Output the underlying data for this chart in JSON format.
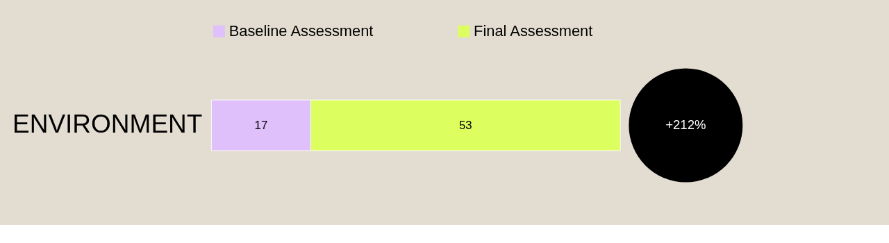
{
  "chart_data": {
    "type": "bar",
    "orientation": "horizontal",
    "stacked": true,
    "categories": [
      "ENVIRONMENT"
    ],
    "series": [
      {
        "name": "Baseline Assessment",
        "color": "#dfc0fb",
        "values": [
          17
        ]
      },
      {
        "name": "Final Assessment",
        "color": "#dcff5f",
        "values": [
          53
        ]
      }
    ],
    "tick_labels": "y",
    "data_labels": true,
    "legend": "top",
    "annotations": [
      "+212%"
    ]
  }
}
